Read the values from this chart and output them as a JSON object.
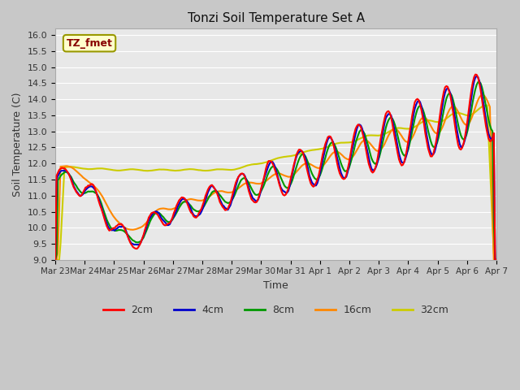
{
  "title": "Tonzi Soil Temperature Set A",
  "xlabel": "Time",
  "ylabel": "Soil Temperature (C)",
  "ylim": [
    9.0,
    16.2
  ],
  "yticks": [
    9.0,
    9.5,
    10.0,
    10.5,
    11.0,
    11.5,
    12.0,
    12.5,
    13.0,
    13.5,
    14.0,
    14.5,
    15.0,
    15.5,
    16.0
  ],
  "plot_bg": "#e8e8e8",
  "fig_bg": "#c8c8c8",
  "grid_color": "#ffffff",
  "legend_label": "TZ_fmet",
  "legend_box_facecolor": "#ffffcc",
  "legend_box_edgecolor": "#999900",
  "legend_text_color": "#880000",
  "xtick_labels": [
    "Mar 23",
    "Mar 24",
    "Mar 25",
    "Mar 26",
    "Mar 27",
    "Mar 28",
    "Mar 29",
    "Mar 30",
    "Mar 31",
    "Apr 1",
    "Apr 2",
    "Apr 3",
    "Apr 4",
    "Apr 5",
    "Apr 6",
    "Apr 7"
  ],
  "series_colors": [
    "#ff0000",
    "#0000cc",
    "#009900",
    "#ff8800",
    "#cccc00"
  ],
  "series_labels": [
    "2cm",
    "4cm",
    "8cm",
    "16cm",
    "32cm"
  ],
  "line_width": 1.5,
  "figsize": [
    6.4,
    4.8
  ],
  "dpi": 100
}
